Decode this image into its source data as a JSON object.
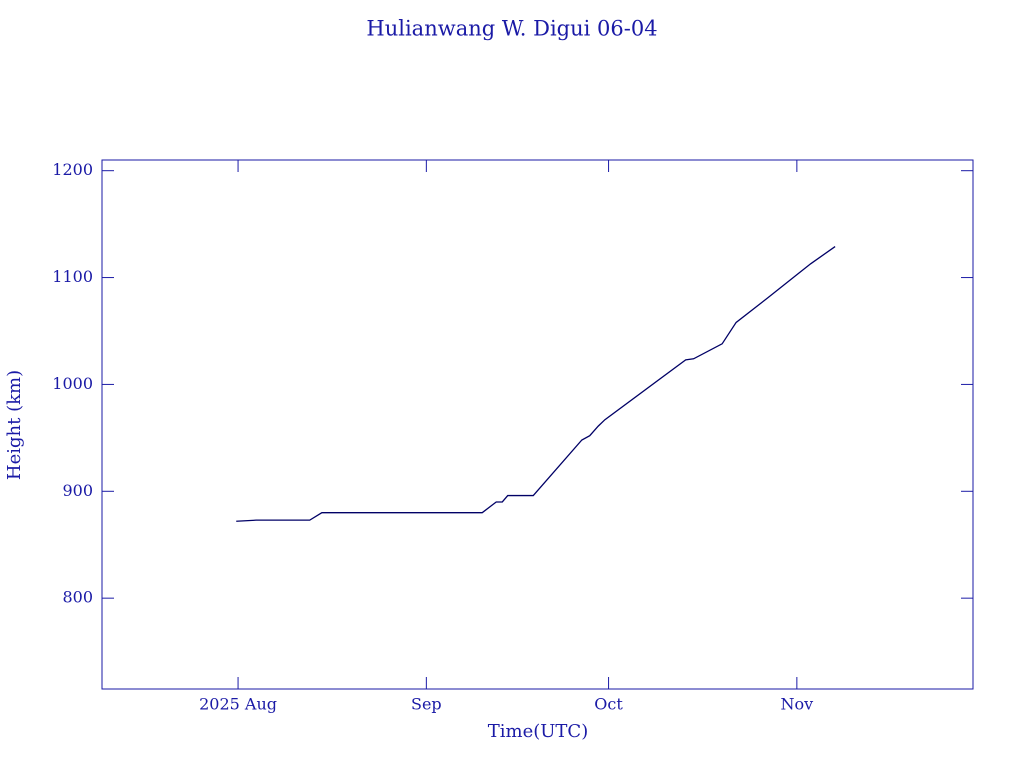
{
  "chart_data": {
    "type": "line",
    "title": "Hulianwang W. Digui 06-04",
    "xlabel": "Time(UTC)",
    "ylabel": "Height (km)",
    "x": [
      212.7,
      216.0,
      224.8,
      226.8,
      253.2,
      255.5,
      256.5,
      257.4,
      261.6,
      269.6,
      270.9,
      272.3,
      273.4,
      286.7,
      288.0,
      292.7,
      295.0,
      300.2,
      305.3,
      307.3,
      311.3
    ],
    "values": [
      872,
      873,
      873,
      880,
      880,
      890,
      890,
      896,
      896,
      948,
      952,
      961,
      967,
      1023,
      1024,
      1038,
      1058,
      1081,
      1104,
      1113,
      1129
    ],
    "color": "#000066",
    "xlim": [
      190.6,
      334
    ],
    "xticks": [
      {
        "value": 213,
        "label": "2025 Aug"
      },
      {
        "value": 244,
        "label": "Sep"
      },
      {
        "value": 274,
        "label": "Oct"
      },
      {
        "value": 305,
        "label": "Nov"
      }
    ],
    "ylim": [
      715,
      1210
    ],
    "yticks": [
      800,
      900,
      1000,
      1100,
      1200
    ],
    "grid": false
  }
}
